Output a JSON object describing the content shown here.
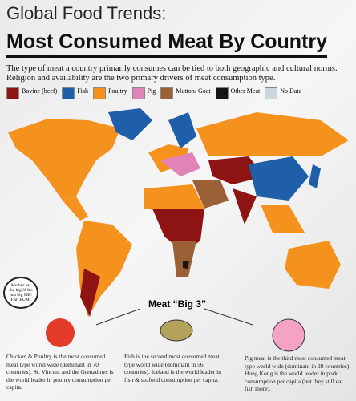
{
  "header": {
    "title_line1": "Global Food Trends:",
    "title_line2": "Most Consumed Meat By Country"
  },
  "intro": "The type of meat a country primarily consumes can be tied to both geographic and cultural norms. Religion and availability are the two primary drivers of meat consumption type.",
  "legend": [
    {
      "label": "Bovine (beef)",
      "color": "#8e1414"
    },
    {
      "label": "Fish",
      "color": "#1f5ea8"
    },
    {
      "label": "Poultry",
      "color": "#f5921e"
    },
    {
      "label": "Pig",
      "color": "#e283b8"
    },
    {
      "label": "Mutton/ Goat",
      "color": "#9c6036"
    },
    {
      "label": "Other Meat",
      "color": "#151515"
    },
    {
      "label": "No Data",
      "color": "#c9d8df"
    }
  ],
  "bubble": "Mother eat the big 3! It's just big ME! Fish BUM!",
  "big3": {
    "heading": "Meat “Big 3”",
    "captions": [
      "Chicken & Poultry is the most consumed meat type world wide (dominant in 70 countries). St. Vincent and the Grenadines is the world leader in poultry consumption per capita.",
      "Fish is the second most consumed meat type world wide (dominant in 56 countries). Iceland is the world leader in fish & seafood consumption per capita.",
      "Pig meat is the third most consumed meat type world wide (dominant in 29 countries). Hong Kong is the world leader in pork consumption per capita (but they still eat fish more)."
    ]
  }
}
